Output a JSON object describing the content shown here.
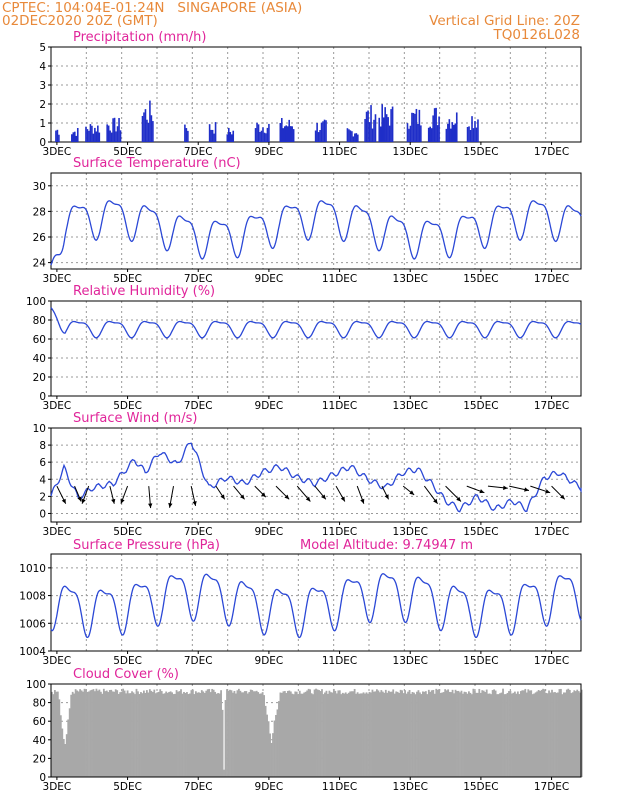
{
  "header": {
    "source_coords": "CPTEC:   104:04E-01:24N",
    "location": "SINGAPORE (ASIA)",
    "run_time": "02DEC2020 20Z (GMT)",
    "grid_note": "Vertical Grid Line: 20Z",
    "model_code": "TQ0126L028"
  },
  "colors": {
    "header_text": "#e8893a",
    "panel_title": "#e0259a",
    "series_line": "#2b48d6",
    "precip_bar": "#1f2ec8",
    "cloud_fill": "#a8a8a8",
    "wind_arrow": "#000000"
  },
  "chart_data": [
    {
      "type": "bar",
      "title": "Precipitation (mm/h)",
      "ylim": [
        0,
        5
      ],
      "yticks": [
        "0",
        "1",
        "2",
        "3",
        "4",
        "5"
      ],
      "xticks": [
        "3DEC",
        "5DEC",
        "7DEC",
        "9DEC",
        "11DEC",
        "13DEC",
        "15DEC",
        "17DEC"
      ],
      "grid": true,
      "x_start_day": 2.833,
      "x_end_day": 17.833,
      "events": [
        [
          2.95,
          3.05,
          0.9
        ],
        [
          3.4,
          3.6,
          0.8
        ],
        [
          3.8,
          4.2,
          1.1
        ],
        [
          4.4,
          4.8,
          1.3
        ],
        [
          5.4,
          5.7,
          2.2
        ],
        [
          6.6,
          6.7,
          1.3
        ],
        [
          7.3,
          7.5,
          1.1
        ],
        [
          7.8,
          8.0,
          0.8
        ],
        [
          8.6,
          9.0,
          1.2
        ],
        [
          9.3,
          9.7,
          1.3
        ],
        [
          10.3,
          10.6,
          1.2
        ],
        [
          11.2,
          11.5,
          0.8
        ],
        [
          11.7,
          12.0,
          2.0
        ],
        [
          12.1,
          12.5,
          2.0
        ],
        [
          12.9,
          13.3,
          1.9
        ],
        [
          13.5,
          13.8,
          2.0
        ],
        [
          14.0,
          14.3,
          1.8
        ],
        [
          14.6,
          14.9,
          1.8
        ]
      ]
    },
    {
      "type": "line",
      "title": "Surface Temperature (nC)",
      "ylim": [
        23.5,
        31
      ],
      "yticks": [
        "24",
        "26",
        "28",
        "30"
      ],
      "xticks": [
        "3DEC",
        "5DEC",
        "7DEC",
        "9DEC",
        "11DEC",
        "13DEC",
        "15DEC",
        "17DEC"
      ],
      "grid": true,
      "x_start_day": 2.833,
      "x_end_day": 17.833,
      "base": 26.9,
      "amplitude": 1.4,
      "start_value": 23.8
    },
    {
      "type": "line",
      "title": "Relative Humidity (%)",
      "ylim": [
        0,
        100
      ],
      "yticks": [
        "0",
        "20",
        "40",
        "60",
        "80",
        "100"
      ],
      "xticks": [
        "3DEC",
        "5DEC",
        "7DEC",
        "9DEC",
        "11DEC",
        "13DEC",
        "15DEC",
        "17DEC"
      ],
      "grid": true,
      "x_start_day": 2.833,
      "x_end_day": 17.833,
      "base": 72,
      "amplitude": 8,
      "start_value": 93
    },
    {
      "type": "line",
      "title": "Surface Wind (m/s)",
      "ylim": [
        -1,
        10
      ],
      "yticks": [
        "0",
        "2",
        "4",
        "6",
        "8",
        "10"
      ],
      "xticks": [
        "3DEC",
        "5DEC",
        "7DEC",
        "9DEC",
        "11DEC",
        "13DEC",
        "15DEC",
        "17DEC"
      ],
      "grid": true,
      "x_start_day": 2.833,
      "x_end_day": 17.833,
      "speed_points": [
        [
          2.833,
          2.0
        ],
        [
          3.2,
          5.3
        ],
        [
          3.6,
          1.8
        ],
        [
          4.0,
          3.0
        ],
        [
          4.6,
          3.5
        ],
        [
          5.2,
          6.3
        ],
        [
          5.5,
          4.8
        ],
        [
          5.9,
          7.2
        ],
        [
          6.4,
          5.7
        ],
        [
          6.8,
          8.5
        ],
        [
          7.3,
          3.0
        ],
        [
          7.8,
          4.2
        ],
        [
          8.3,
          3.5
        ],
        [
          8.8,
          4.8
        ],
        [
          9.3,
          5.5
        ],
        [
          9.8,
          4.2
        ],
        [
          10.3,
          3.5
        ],
        [
          10.8,
          4.5
        ],
        [
          11.3,
          5.5
        ],
        [
          11.8,
          4.0
        ],
        [
          12.3,
          3.0
        ],
        [
          12.8,
          4.8
        ],
        [
          13.2,
          5.2
        ],
        [
          13.6,
          3.5
        ],
        [
          14.0,
          1.5
        ],
        [
          14.4,
          0.5
        ],
        [
          14.9,
          2.0
        ],
        [
          15.4,
          0.5
        ],
        [
          15.9,
          1.5
        ],
        [
          16.3,
          0.5
        ],
        [
          16.8,
          4.2
        ],
        [
          17.2,
          4.8
        ],
        [
          17.833,
          3.0
        ]
      ],
      "arrows": [
        [
          3.0,
          0.4,
          0.8
        ],
        [
          3.5,
          0.3,
          0.7
        ],
        [
          3.9,
          -0.3,
          0.8
        ],
        [
          4.5,
          0.2,
          0.8
        ],
        [
          5.0,
          -0.3,
          0.8
        ],
        [
          5.6,
          0.1,
          1.2
        ],
        [
          6.3,
          -0.2,
          1.1
        ],
        [
          6.8,
          0.2,
          0.9
        ],
        [
          7.5,
          0.4,
          0.6
        ],
        [
          8.0,
          0.5,
          0.6
        ],
        [
          8.6,
          0.5,
          0.5
        ],
        [
          9.2,
          0.6,
          0.6
        ],
        [
          9.8,
          0.6,
          0.7
        ],
        [
          10.3,
          0.5,
          0.6
        ],
        [
          10.9,
          0.4,
          0.7
        ],
        [
          11.5,
          0.3,
          0.8
        ],
        [
          12.2,
          0.3,
          0.6
        ],
        [
          12.8,
          0.5,
          0.4
        ],
        [
          13.4,
          0.6,
          0.8
        ],
        [
          14.0,
          0.7,
          0.7
        ],
        [
          14.6,
          0.8,
          0.3
        ],
        [
          15.2,
          0.9,
          0.1
        ],
        [
          15.8,
          0.9,
          0.2
        ],
        [
          16.4,
          0.9,
          0.3
        ],
        [
          17.0,
          0.6,
          0.6
        ]
      ]
    },
    {
      "type": "line",
      "title": "Surface Pressure (hPa)",
      "ylim": [
        1004,
        1011
      ],
      "yticks": [
        "1004",
        "1006",
        "1008",
        "1010"
      ],
      "xticks": [
        "3DEC",
        "5DEC",
        "7DEC",
        "9DEC",
        "11DEC",
        "13DEC",
        "15DEC",
        "17DEC"
      ],
      "grid": true,
      "x_start_day": 2.833,
      "x_end_day": 17.833,
      "annotation": "Model Altitude: 9.74947 m",
      "base": 1007.7,
      "amplitude": 1.6
    },
    {
      "type": "bar",
      "title": "Cloud Cover (%)",
      "ylim": [
        0,
        100
      ],
      "yticks": [
        "0",
        "20",
        "40",
        "60",
        "80",
        "100"
      ],
      "xticks": [
        "3DEC",
        "5DEC",
        "7DEC",
        "9DEC",
        "11DEC",
        "13DEC",
        "15DEC",
        "17DEC"
      ],
      "grid": true,
      "x_start_day": 2.833,
      "x_end_day": 17.833,
      "base": 92,
      "dips": [
        [
          3.0,
          3.4,
          35
        ],
        [
          7.65,
          7.75,
          0
        ],
        [
          8.8,
          9.3,
          40
        ]
      ]
    }
  ]
}
